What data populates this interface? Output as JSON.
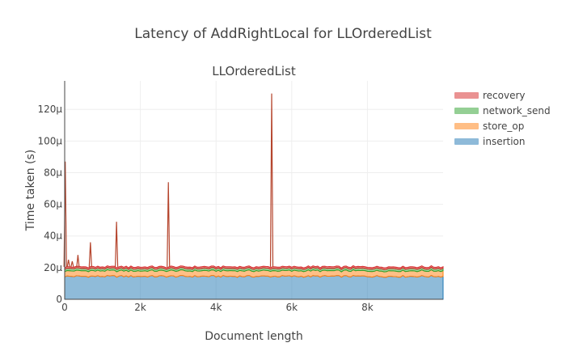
{
  "title": "Latency of AddRightLocal for LLOrderedList",
  "chart_data": {
    "type": "area",
    "title": "LLOrderedList",
    "xlabel": "Document length",
    "ylabel": "Time taken (s)",
    "xlim": [
      0,
      10000
    ],
    "ylim": [
      0,
      0.000138
    ],
    "x_ticks": [
      0,
      2000,
      4000,
      6000,
      8000
    ],
    "x_tick_labels": [
      "0",
      "2k",
      "4k",
      "6k",
      "8k"
    ],
    "y_ticks": [
      0,
      2e-05,
      4e-05,
      6e-05,
      8e-05,
      0.0001,
      0.00012
    ],
    "y_tick_labels": [
      "0",
      "20μ",
      "40μ",
      "60μ",
      "80μ",
      "100μ",
      "120μ"
    ],
    "stacked": true,
    "grid": true,
    "legend_position": "right",
    "series": [
      {
        "name": "insertion",
        "color": "#1f77b4",
        "baseline": 1.45e-05
      },
      {
        "name": "store_op",
        "color": "#ff7f0e",
        "baseline": 3.5e-06
      },
      {
        "name": "network_send",
        "color": "#2ca02c",
        "baseline": 1.5e-06
      },
      {
        "name": "recovery",
        "color": "#d62728",
        "baseline": 1e-06
      }
    ],
    "spikes": [
      {
        "x": 0,
        "y": 8.7e-05
      },
      {
        "x": 100,
        "y": 2.5e-05
      },
      {
        "x": 200,
        "y": 2.4e-05
      },
      {
        "x": 350,
        "y": 2.8e-05
      },
      {
        "x": 680,
        "y": 3.6e-05
      },
      {
        "x": 1370,
        "y": 4.9e-05
      },
      {
        "x": 2740,
        "y": 7.4e-05
      },
      {
        "x": 5470,
        "y": 0.00013
      }
    ]
  }
}
